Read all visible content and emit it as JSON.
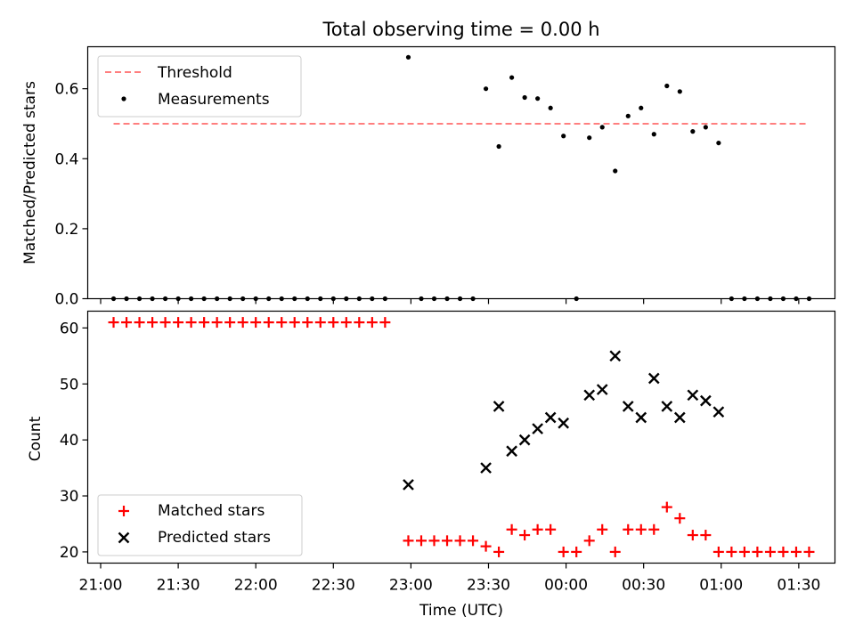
{
  "chart_data": [
    {
      "type": "scatter",
      "title": "Total observing time = 0.00 h",
      "xlabel": "",
      "ylabel": "Matched/Predicted stars",
      "ylim": [
        0,
        0.72
      ],
      "yticks": [
        "0.0",
        "0.2",
        "0.4",
        "0.6"
      ],
      "grid": false,
      "legend_position": "top-left",
      "series": [
        {
          "name": "Threshold",
          "kind": "dashed-line",
          "color": "#ff7f7f",
          "x": [
            "21:05",
            "01:33"
          ],
          "y": [
            0.5,
            0.5
          ]
        },
        {
          "name": "Measurements",
          "kind": "dot",
          "color": "#000000",
          "points": [
            [
              "21:05",
              0.0
            ],
            [
              "21:10",
              0.0
            ],
            [
              "21:15",
              0.0
            ],
            [
              "21:20",
              0.0
            ],
            [
              "21:25",
              0.0
            ],
            [
              "21:30",
              0.0
            ],
            [
              "21:35",
              0.0
            ],
            [
              "21:40",
              0.0
            ],
            [
              "21:45",
              0.0
            ],
            [
              "21:50",
              0.0
            ],
            [
              "21:55",
              0.0
            ],
            [
              "22:00",
              0.0
            ],
            [
              "22:05",
              0.0
            ],
            [
              "22:10",
              0.0
            ],
            [
              "22:15",
              0.0
            ],
            [
              "22:20",
              0.0
            ],
            [
              "22:25",
              0.0
            ],
            [
              "22:30",
              0.0
            ],
            [
              "22:35",
              0.0
            ],
            [
              "22:40",
              0.0
            ],
            [
              "22:45",
              0.0
            ],
            [
              "22:50",
              0.0
            ],
            [
              "22:59",
              0.69
            ],
            [
              "23:04",
              0.0
            ],
            [
              "23:09",
              0.0
            ],
            [
              "23:14",
              0.0
            ],
            [
              "23:19",
              0.0
            ],
            [
              "23:24",
              0.0
            ],
            [
              "23:29",
              0.6
            ],
            [
              "23:34",
              0.435
            ],
            [
              "23:39",
              0.632
            ],
            [
              "23:44",
              0.575
            ],
            [
              "23:49",
              0.572
            ],
            [
              "23:54",
              0.545
            ],
            [
              "23:59",
              0.465
            ],
            [
              "00:04",
              0.0
            ],
            [
              "00:09",
              0.46
            ],
            [
              "00:14",
              0.49
            ],
            [
              "00:19",
              0.365
            ],
            [
              "00:24",
              0.522
            ],
            [
              "00:29",
              0.545
            ],
            [
              "00:34",
              0.47
            ],
            [
              "00:39",
              0.608
            ],
            [
              "00:44",
              0.592
            ],
            [
              "00:49",
              0.478
            ],
            [
              "00:54",
              0.49
            ],
            [
              "00:59",
              0.445
            ],
            [
              "01:04",
              0.0
            ],
            [
              "01:09",
              0.0
            ],
            [
              "01:14",
              0.0
            ],
            [
              "01:19",
              0.0
            ],
            [
              "01:24",
              0.0
            ],
            [
              "01:29",
              0.0
            ],
            [
              "01:34",
              0.0
            ]
          ]
        }
      ]
    },
    {
      "type": "scatter",
      "title": "",
      "xlabel": "Time (UTC)",
      "ylabel": "Count",
      "ylim": [
        18,
        63
      ],
      "yticks": [
        "20",
        "30",
        "40",
        "50",
        "60"
      ],
      "xticks": [
        "21:00",
        "21:30",
        "22:00",
        "22:30",
        "23:00",
        "23:30",
        "00:00",
        "00:30",
        "01:00",
        "01:30"
      ],
      "xlim": [
        "20:55",
        "01:44"
      ],
      "grid": false,
      "legend_position": "bottom-left",
      "series": [
        {
          "name": "Matched stars",
          "marker": "plus",
          "color": "#ff0000",
          "points": [
            [
              "21:05",
              61
            ],
            [
              "21:10",
              61
            ],
            [
              "21:15",
              61
            ],
            [
              "21:20",
              61
            ],
            [
              "21:25",
              61
            ],
            [
              "21:30",
              61
            ],
            [
              "21:35",
              61
            ],
            [
              "21:40",
              61
            ],
            [
              "21:45",
              61
            ],
            [
              "21:50",
              61
            ],
            [
              "21:55",
              61
            ],
            [
              "22:00",
              61
            ],
            [
              "22:05",
              61
            ],
            [
              "22:10",
              61
            ],
            [
              "22:15",
              61
            ],
            [
              "22:20",
              61
            ],
            [
              "22:25",
              61
            ],
            [
              "22:30",
              61
            ],
            [
              "22:35",
              61
            ],
            [
              "22:40",
              61
            ],
            [
              "22:45",
              61
            ],
            [
              "22:50",
              61
            ],
            [
              "22:59",
              22
            ],
            [
              "23:04",
              22
            ],
            [
              "23:09",
              22
            ],
            [
              "23:14",
              22
            ],
            [
              "23:19",
              22
            ],
            [
              "23:24",
              22
            ],
            [
              "23:29",
              21
            ],
            [
              "23:34",
              20
            ],
            [
              "23:39",
              24
            ],
            [
              "23:44",
              23
            ],
            [
              "23:49",
              24
            ],
            [
              "23:54",
              24
            ],
            [
              "23:59",
              20
            ],
            [
              "00:04",
              20
            ],
            [
              "00:09",
              22
            ],
            [
              "00:14",
              24
            ],
            [
              "00:19",
              20
            ],
            [
              "00:24",
              24
            ],
            [
              "00:29",
              24
            ],
            [
              "00:34",
              24
            ],
            [
              "00:39",
              28
            ],
            [
              "00:44",
              26
            ],
            [
              "00:49",
              23
            ],
            [
              "00:54",
              23
            ],
            [
              "00:59",
              20
            ],
            [
              "01:04",
              20
            ],
            [
              "01:09",
              20
            ],
            [
              "01:14",
              20
            ],
            [
              "01:19",
              20
            ],
            [
              "01:24",
              20
            ],
            [
              "01:29",
              20
            ],
            [
              "01:34",
              20
            ]
          ]
        },
        {
          "name": "Predicted stars",
          "marker": "x",
          "color": "#000000",
          "points": [
            [
              "22:59",
              32
            ],
            [
              "23:29",
              35
            ],
            [
              "23:34",
              46
            ],
            [
              "23:39",
              38
            ],
            [
              "23:44",
              40
            ],
            [
              "23:49",
              42
            ],
            [
              "23:54",
              44
            ],
            [
              "23:59",
              43
            ],
            [
              "00:09",
              48
            ],
            [
              "00:14",
              49
            ],
            [
              "00:19",
              55
            ],
            [
              "00:24",
              46
            ],
            [
              "00:29",
              44
            ],
            [
              "00:34",
              51
            ],
            [
              "00:39",
              46
            ],
            [
              "00:44",
              44
            ],
            [
              "00:49",
              48
            ],
            [
              "00:54",
              47
            ],
            [
              "00:59",
              45
            ]
          ]
        }
      ]
    }
  ]
}
